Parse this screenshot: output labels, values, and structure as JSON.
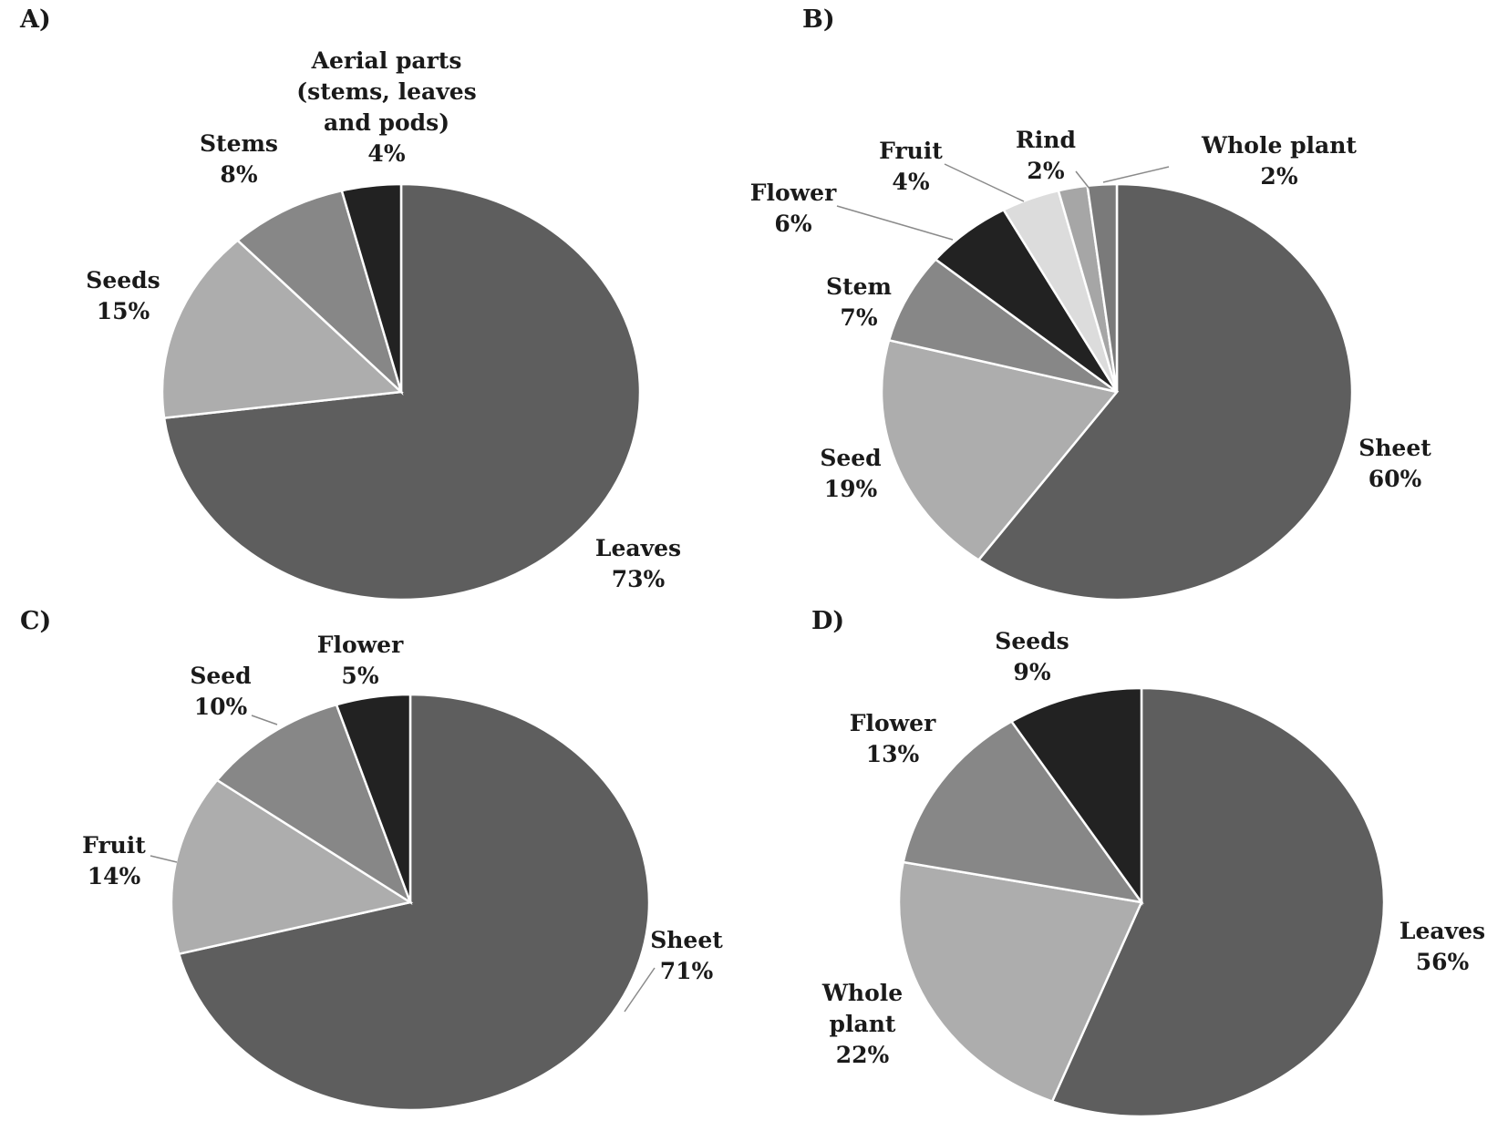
{
  "chart_data": [
    {
      "type": "pie",
      "panel_label": "A)",
      "slices": [
        {
          "label": [
            "Leaves"
          ],
          "pct": "73%",
          "value": 73,
          "color": "#5e5e5e"
        },
        {
          "label": [
            "Seeds"
          ],
          "pct": "15%",
          "value": 15,
          "color": "#adadad"
        },
        {
          "label": [
            "Stems"
          ],
          "pct": "8%",
          "value": 8,
          "color": "#878787"
        },
        {
          "label": [
            "Aerial parts",
            "(stems, leaves",
            "and pods)"
          ],
          "pct": "4%",
          "value": 4,
          "color": "#222222"
        }
      ]
    },
    {
      "type": "pie",
      "panel_label": "B)",
      "slices": [
        {
          "label": [
            "Sheet"
          ],
          "pct": "60%",
          "value": 60,
          "color": "#5e5e5e"
        },
        {
          "label": [
            "Seed"
          ],
          "pct": "19%",
          "value": 19,
          "color": "#adadad"
        },
        {
          "label": [
            "Stem"
          ],
          "pct": "7%",
          "value": 7,
          "color": "#878787"
        },
        {
          "label": [
            "Flower"
          ],
          "pct": "6%",
          "value": 6,
          "color": "#222222"
        },
        {
          "label": [
            "Fruit"
          ],
          "pct": "4%",
          "value": 4,
          "color": "#dcdcdc"
        },
        {
          "label": [
            "Rind"
          ],
          "pct": "2%",
          "value": 2,
          "color": "#a6a6a6"
        },
        {
          "label": [
            "Whole plant"
          ],
          "pct": "2%",
          "value": 2,
          "color": "#7a7a7a"
        }
      ]
    },
    {
      "type": "pie",
      "panel_label": "C)",
      "slices": [
        {
          "label": [
            "Sheet"
          ],
          "pct": "71%",
          "value": 71,
          "color": "#5e5e5e"
        },
        {
          "label": [
            "Fruit"
          ],
          "pct": "14%",
          "value": 14,
          "color": "#adadad"
        },
        {
          "label": [
            "Seed"
          ],
          "pct": "10%",
          "value": 10,
          "color": "#878787"
        },
        {
          "label": [
            "Flower"
          ],
          "pct": "5%",
          "value": 5,
          "color": "#222222"
        }
      ]
    },
    {
      "type": "pie",
      "panel_label": "D)",
      "slices": [
        {
          "label": [
            "Leaves"
          ],
          "pct": "56%",
          "value": 56,
          "color": "#5e5e5e"
        },
        {
          "label": [
            "Whole",
            "plant"
          ],
          "pct": "22%",
          "value": 22,
          "color": "#adadad"
        },
        {
          "label": [
            "Flower"
          ],
          "pct": "13%",
          "value": 13,
          "color": "#878787"
        },
        {
          "label": [
            "Seeds"
          ],
          "pct": "9%",
          "value": 9,
          "color": "#222222"
        }
      ]
    }
  ]
}
